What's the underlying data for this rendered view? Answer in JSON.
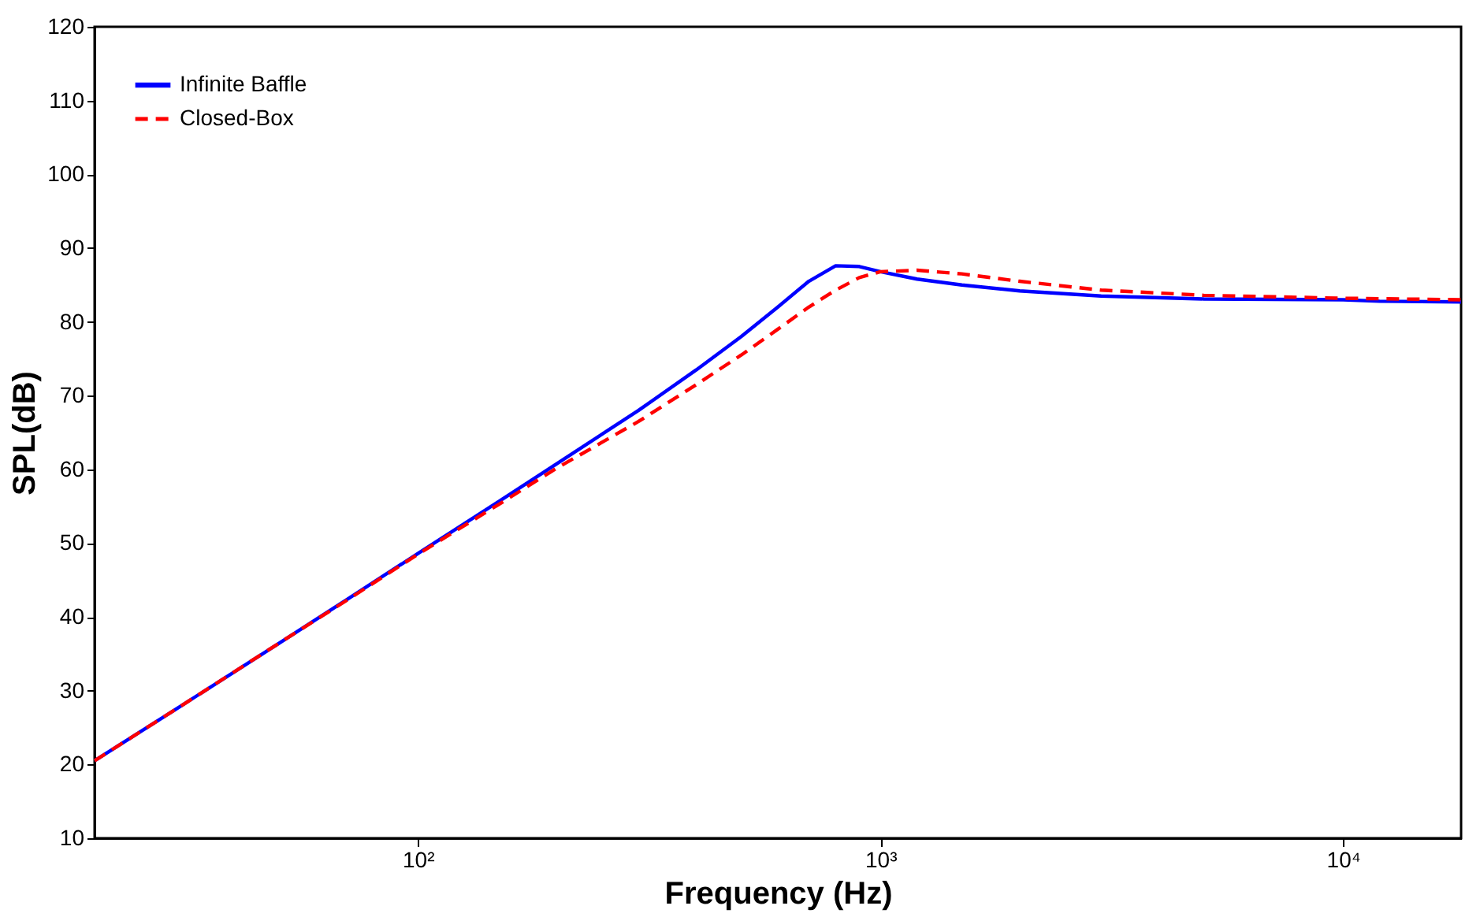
{
  "chart_data": {
    "type": "line",
    "xlabel": "Frequency (Hz)",
    "ylabel": "SPL(dB)",
    "log": "x",
    "xlim": [
      20,
      18000
    ],
    "xticks": [
      {
        "value": 100,
        "label": "10²"
      },
      {
        "value": 1000,
        "label": "10³"
      },
      {
        "value": 10000,
        "label": "10⁴"
      }
    ],
    "ylim": [
      10,
      120
    ],
    "yticks": [
      10,
      20,
      30,
      40,
      50,
      60,
      70,
      80,
      90,
      100,
      110,
      120
    ],
    "grid": false,
    "legend": "top left",
    "marker": "none",
    "series": [
      {
        "name": "Infinite Baffle",
        "color": "#0000ff",
        "line_style": "solid",
        "x": [
          20,
          30,
          50,
          70,
          100,
          150,
          200,
          300,
          400,
          500,
          600,
          700,
          800,
          900,
          1000,
          1200,
          1500,
          2000,
          3000,
          5000,
          10000,
          12000,
          18000
        ],
        "values": [
          20.5,
          27.5,
          36.4,
          42.3,
          48.6,
          55.7,
          60.8,
          68,
          73.5,
          78,
          82,
          85.5,
          87.6,
          87.5,
          86.8,
          85.8,
          85,
          84.2,
          83.5,
          83.1,
          83,
          82.8,
          82.7
        ]
      },
      {
        "name": "Closed-Box",
        "color": "#ff0000",
        "line_style": "dashed",
        "x": [
          20,
          30,
          50,
          70,
          100,
          150,
          200,
          300,
          400,
          500,
          600,
          700,
          800,
          900,
          1000,
          1200,
          1500,
          2000,
          3000,
          5000,
          10000,
          18000
        ],
        "values": [
          20.5,
          27.5,
          36.4,
          42.2,
          48.5,
          55.3,
          60.2,
          66.5,
          71.5,
          75.5,
          79,
          82,
          84.3,
          86,
          86.8,
          87,
          86.5,
          85.5,
          84.3,
          83.6,
          83.2,
          83
        ]
      }
    ]
  }
}
